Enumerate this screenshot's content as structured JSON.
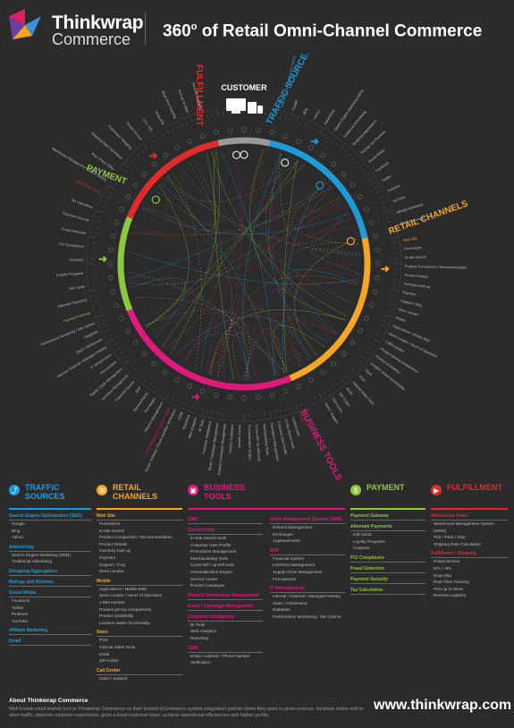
{
  "header": {
    "brand_line1": "Thinkwrap",
    "brand_line2": "Commerce",
    "title_prefix": "360",
    "title_degree": "o",
    "title_suffix": " of Retail Omni-Channel Commerce",
    "logo_colors": [
      "#e31f64",
      "#3b8fd4",
      "#f4a323",
      "#6b3fa0"
    ]
  },
  "wheel": {
    "customer_label": "CUSTOMER",
    "segments": [
      {
        "name": "TRAFFIC SOURCES",
        "color": "#1e9bd7"
      },
      {
        "name": "RETAIL CHANNELS",
        "color": "#f5a623"
      },
      {
        "name": "BUSINESS TOOLS",
        "color": "#e0197d"
      },
      {
        "name": "PAYMENT",
        "color": "#8dc63f"
      },
      {
        "name": "FULFILLMENT",
        "color": "#e22b2b"
      }
    ],
    "ring_labels": {
      "traffic": [
        "Search Engine Optimization (SEO)",
        "Google",
        "Bing",
        "Yahoo",
        "Advertising",
        "Search Engine Marketing (SEM)",
        "Traditional Advertising",
        "Shopping Aggregators",
        "Ratings and Reviews",
        "Social Media",
        "Facebook",
        "Twitter",
        "Pinterest",
        "YouTube",
        "Affiliate Marketing",
        "Email Marketing"
      ],
      "retail": [
        "Web Site",
        "Promotions",
        "In-site Search",
        "Product Comparison / Recommendation",
        "Product Details",
        "Inventory look-up",
        "Payment",
        "Support / FAQ",
        "Store Locator",
        "Mobile",
        "Applications / Mobile Web",
        "Store Locator / Hours of Operation",
        "1-800 number",
        "Product pricing comparisons",
        "Product availability",
        "Location aware functionality",
        "Store",
        "POS",
        "Internal Sales Tools",
        "Kiosk",
        "QR Codes",
        "Call Center",
        "Sales / Support"
      ],
      "business": [
        "CMS",
        "Content Hub",
        "In-Site Search tools",
        "Customer User Profile",
        "Promotions Management",
        "Merchandising Tools",
        "Cross-sell / up-sell tools",
        "Personalization Engine",
        "Service Center",
        "Product Catalogue",
        "Product Information Management",
        "Email / Campaign Management",
        "Customer Intelligence",
        "BI Tools",
        "Web Analytics",
        "Reporting",
        "CDM",
        "Email / Address / Phone Number Verification"
      ],
      "business2": [
        "Order Management System (OMS)",
        "Returns Management",
        "Exchanges",
        "Appeasements",
        "ERP",
        "Financial System",
        "Inventory Management",
        "Supply Chain Management",
        "Procurement",
        "IT Infrastructure",
        "Internal / External / Managed Hosting",
        "SaaS / OnDemand",
        "Database",
        "Performance Monitoring / Site Uptime"
      ],
      "payment": [
        "Payment Gateway",
        "Alternate Payments",
        "Gift Cards",
        "Loyalty Programs",
        "Coupons",
        "PCI Compliance",
        "Fraud Detection",
        "Payment Security",
        "Tax Calculation"
      ],
      "fulfillment": [
        "Warehouse Tools",
        "Warehouse Management System (WMS)",
        "Pick / Pack / Ship",
        "Shipping Rate Calculation",
        "Fulfillment / Shipping",
        "Postal Service",
        "DTL / 4PL",
        "Drop-ship",
        "Real-Time Tracking",
        "Pick-up In-Store",
        "Reverse Logistics"
      ]
    }
  },
  "categories": [
    {
      "key": "traffic",
      "title": [
        "TRAFFIC",
        "SOURCES"
      ],
      "color": "#1e9bd7",
      "icon": "share-icon",
      "sections": [
        {
          "name": "Search Engine Optimization (SEO)",
          "items": [
            "Google",
            "Bing",
            "Yahoo"
          ]
        },
        {
          "name": "Advertising",
          "items": [
            "Search Engine Marketing (SEM)",
            "Traditional Advertising"
          ]
        },
        {
          "name": "Shopping Aggregators",
          "items": []
        },
        {
          "name": "Ratings and Reviews",
          "items": []
        },
        {
          "name": "Social Media",
          "items": [
            "Facebook",
            "Twitter",
            "Pinterest",
            "YouTube"
          ]
        },
        {
          "name": "Affiliate Marketing",
          "items": []
        },
        {
          "name": "Email",
          "items": []
        }
      ]
    },
    {
      "key": "retail",
      "title": [
        "RETAIL",
        "CHANNELS"
      ],
      "color": "#f5a623",
      "icon": "cart-icon",
      "sections": [
        {
          "name": "Web Site",
          "items": [
            "Promotions",
            "In-site Search",
            "Product Comparison / Recommendation",
            "Product Details",
            "Inventory look-up",
            "Payment",
            "Support / FAQ",
            "Store Locator"
          ]
        },
        {
          "name": "Mobile",
          "items": [
            "Applications / Mobile Web",
            "Store Locator / Hours of Operation",
            "1-800 number",
            "Product pricing comparisons",
            "Product availability",
            "Location aware functionality"
          ]
        },
        {
          "name": "Store",
          "items": [
            "POS",
            "Internal Sales Tools",
            "Kiosk",
            "QR Codes"
          ]
        },
        {
          "name": "Call Center",
          "items": [
            "Sales / Support"
          ]
        }
      ]
    },
    {
      "key": "business",
      "title": [
        "BUSINESS",
        "TOOLS"
      ],
      "color": "#e0197d",
      "icon": "briefcase-icon",
      "sections": [
        {
          "name": "CMS",
          "items": []
        },
        {
          "name": "Content Hub",
          "items": [
            "In-Site Search tools",
            "Customer User Profile",
            "Promotions Management",
            "Merchandising Tools",
            "Cross-sell / up-sell tools",
            "Personalization Engine",
            "Service Center",
            "Product Catalogue"
          ]
        },
        {
          "name": "Product Information Management",
          "items": []
        },
        {
          "name": "Email / Campaign Management",
          "items": []
        },
        {
          "name": "Customer Intelligence",
          "items": [
            "BI Tools",
            "Web Analytics",
            "Reporting"
          ]
        },
        {
          "name": "CDM",
          "items": [
            "Email / Address / Phone Number Verification"
          ]
        }
      ],
      "sections2": [
        {
          "name": "Order Management System (OMS)",
          "items": [
            "Returns Management",
            "Exchanges",
            "Appeasements"
          ]
        },
        {
          "name": "ERP",
          "items": [
            "Financial System",
            "Inventory Management",
            "Supply Chain Management",
            "Procurement"
          ]
        },
        {
          "name": "IT Infrastructure",
          "items": [
            "Internal / External / Managed Hosting",
            "SaaS / OnDemand",
            "Database",
            "Performance Monitoring / Site Uptime"
          ]
        }
      ]
    },
    {
      "key": "payment",
      "title": [
        "PAYMENT"
      ],
      "color": "#8dc63f",
      "icon": "dollar-icon",
      "sections": [
        {
          "name": "Payment Gateway",
          "items": []
        },
        {
          "name": "Alternate Payments",
          "items": [
            "Gift Cards",
            "Loyalty Programs",
            "Coupons"
          ]
        },
        {
          "name": "PCI Compliance",
          "items": []
        },
        {
          "name": "Fraud Detection",
          "items": []
        },
        {
          "name": "Payment Security",
          "items": []
        },
        {
          "name": "Tax Calculation",
          "items": []
        }
      ]
    },
    {
      "key": "fulfillment",
      "title": [
        "FULFILLMENT"
      ],
      "color": "#e22b2b",
      "icon": "truck-icon",
      "sections": [
        {
          "name": "Warehouse Tools",
          "items": [
            "Warehouse Management System (WMS)",
            "Pick / Pack / Ship",
            "Shipping Rate Calculation"
          ]
        },
        {
          "name": "Fulfillment / Shipping",
          "items": [
            "Postal Service",
            "DTL / 4PL",
            "Drop-ship",
            "Real-Time Tracking",
            "Pick-up In-Store",
            "Reverse Logistics"
          ]
        }
      ]
    }
  ],
  "footer": {
    "about_title": "About Thinkwrap Commerce",
    "about_text": "Well-known retail brands turn to Thinkwrap Commerce as their trusted eCommerce system integration partner when they want to grow revenue, increase online and in-store traffic, improve customer experience, grow a loyal customer base, achieve operational efficiencies and higher profits.",
    "url": "www.thinkwrap.com"
  }
}
